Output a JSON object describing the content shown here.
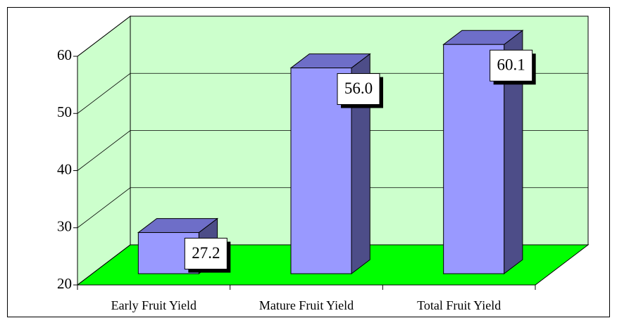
{
  "chart_data": {
    "type": "bar3d",
    "categories": [
      "Early Fruit Yield",
      "Mature Fruit Yield",
      "Total Fruit Yield"
    ],
    "values": [
      27.2,
      56.0,
      60.1
    ],
    "value_labels": [
      "27.2",
      "56.0",
      "60.1"
    ],
    "color": "#9999ff",
    "ylim": [
      20,
      60
    ],
    "yticks": [
      20,
      30,
      40,
      50,
      60
    ],
    "grid": true,
    "wall_color": "#ccffcc",
    "floor_color": "#00ff00"
  }
}
